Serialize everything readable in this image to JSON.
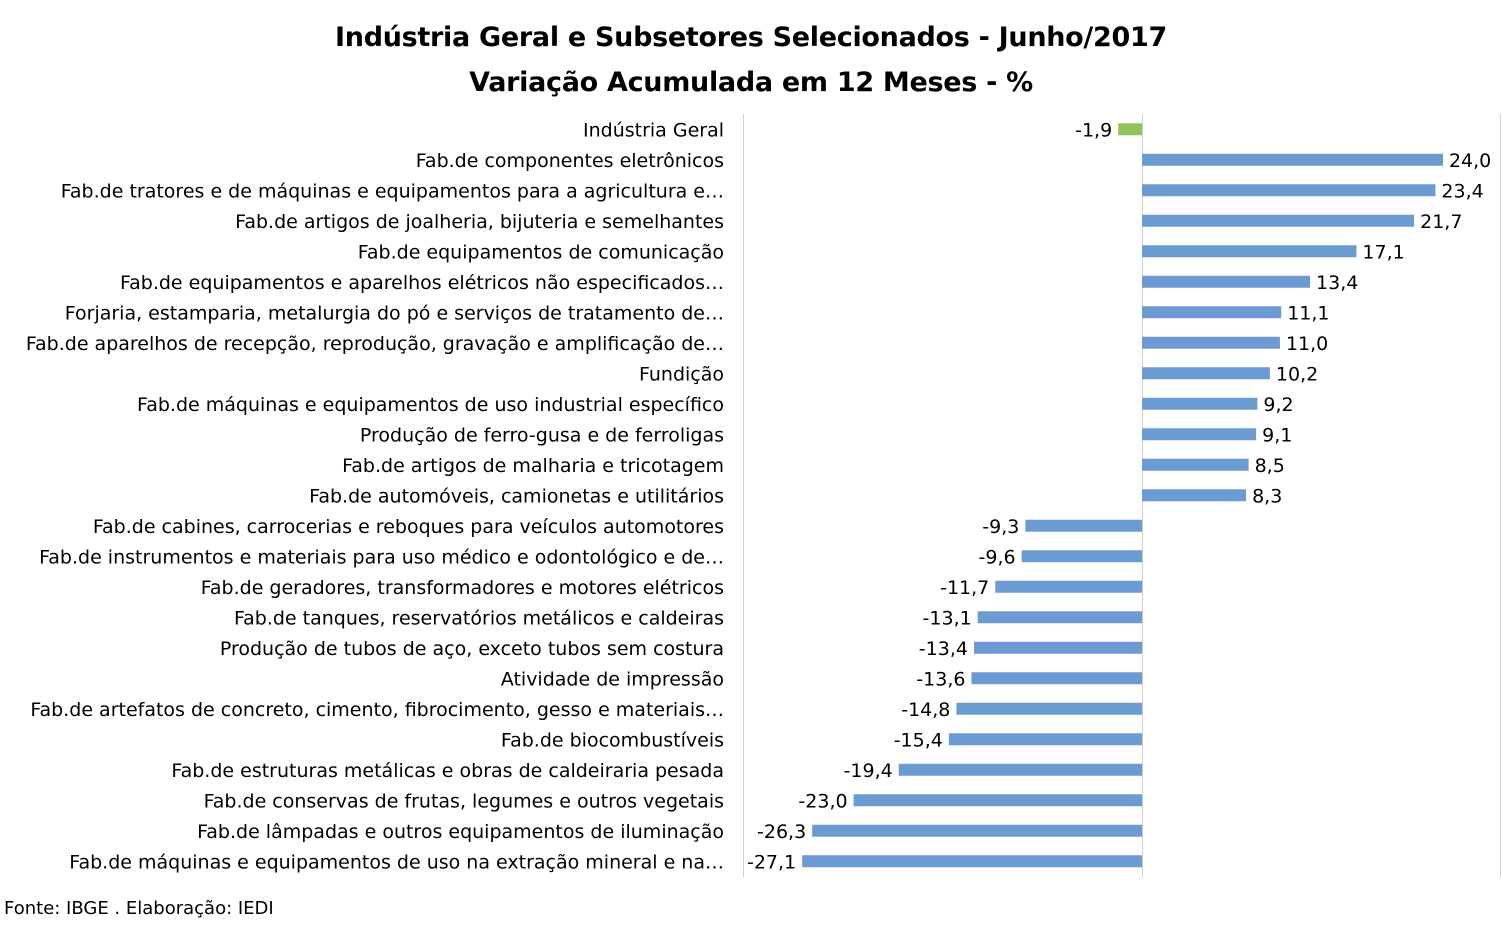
{
  "chart_data": {
    "type": "bar",
    "orientation": "horizontal",
    "title": "Indústria Geral e Subsetores Selecionados - Junho/2017",
    "subtitle": "Variação Acumulada em 12 Meses - %",
    "source": "Fonte: IBGE . Elaboração: IEDI",
    "xlim": [
      -30,
      26
    ],
    "grid": false,
    "colors": {
      "highlight": "#92c35a",
      "bar": "#6b9bd1",
      "axis": "#d0d0d0"
    },
    "categories": [
      "Indústria Geral",
      "Fab.de componentes eletrônicos",
      "Fab.de tratores e de máquinas e equipamentos para a agricultura e…",
      "Fab.de artigos de joalheria, bijuteria e semelhantes",
      "Fab.de equipamentos de comunicação",
      "Fab.de equipamentos e aparelhos elétricos não especificados…",
      "Forjaria, estamparia, metalurgia do pó e serviços de tratamento de…",
      "Fab.de aparelhos de recepção, reprodução, gravação e amplificação de…",
      "Fundição",
      "Fab.de máquinas e equipamentos de uso industrial específico",
      "Produção de ferro-gusa e de ferroligas",
      "Fab.de artigos de malharia e tricotagem",
      "Fab.de automóveis, camionetas e utilitários",
      "Fab.de cabines, carrocerias e reboques para veículos automotores",
      "Fab.de instrumentos e materiais para uso médico e odontológico e de…",
      "Fab.de geradores, transformadores e motores elétricos",
      "Fab.de tanques, reservatórios metálicos e caldeiras",
      "Produção de tubos de aço, exceto tubos sem costura",
      "Atividade de impressão",
      "Fab.de artefatos de concreto, cimento, fibrocimento, gesso e materiais…",
      "Fab.de biocombustíveis",
      "Fab.de estruturas metálicas e obras de caldeiraria pesada",
      "Fab.de conservas de frutas, legumes e outros vegetais",
      "Fab.de lâmpadas e outros equipamentos de iluminação",
      "Fab.de máquinas e equipamentos de uso na extração mineral e na…"
    ],
    "values": [
      -1.9,
      24.0,
      23.4,
      21.7,
      17.1,
      13.4,
      11.1,
      11.0,
      10.2,
      9.2,
      9.1,
      8.5,
      8.3,
      -9.3,
      -9.6,
      -11.7,
      -13.1,
      -13.4,
      -13.6,
      -14.8,
      -15.4,
      -19.4,
      -23.0,
      -26.3,
      -27.1
    ],
    "labels": [
      "-1,9",
      "24,0",
      "23,4",
      "21,7",
      "17,1",
      "13,4",
      "11,1",
      "11,0",
      "10,2",
      "9,2",
      "9,1",
      "8,5",
      "8,3",
      "-9,3",
      "-9,6",
      "-11,7",
      "-13,1",
      "-13,4",
      "-13,6",
      "-14,8",
      "-15,4",
      "-19,4",
      "-23,0",
      "-26,3",
      "-27,1"
    ]
  }
}
